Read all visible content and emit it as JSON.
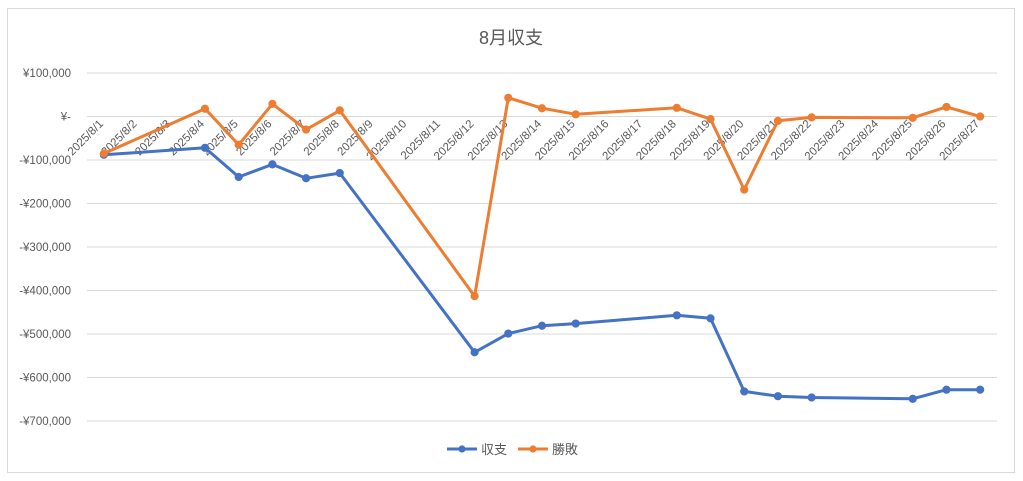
{
  "chart_data": {
    "type": "line",
    "title": "8月収支",
    "categories": [
      "2025/8/1",
      "2025/8/2",
      "2025/8/3",
      "2025/8/4",
      "2025/8/5",
      "2025/8/6",
      "2025/8/7",
      "2025/8/8",
      "2025/8/9",
      "2025/8/10",
      "2025/8/11",
      "2025/8/12",
      "2025/8/13",
      "2025/8/14",
      "2025/8/15",
      "2025/8/16",
      "2025/8/17",
      "2025/8/18",
      "2025/8/19",
      "2025/8/20",
      "2025/8/21",
      "2025/8/22",
      "2025/8/23",
      "2025/8/24",
      "2025/8/25",
      "2025/8/26",
      "2025/8/27"
    ],
    "y_ticks": [
      "¥100,000",
      "¥-",
      "-¥100,000",
      "-¥200,000",
      "-¥300,000",
      "-¥400,000",
      "-¥500,000",
      "-¥600,000",
      "-¥700,000"
    ],
    "ylim": [
      -700000,
      100000
    ],
    "grid": true,
    "legend_position": "bottom",
    "series": [
      {
        "name": "収支",
        "color": "#4472c4",
        "points": [
          [
            1,
            -88000
          ],
          [
            4,
            -72000
          ],
          [
            5,
            -139000
          ],
          [
            6,
            -110000
          ],
          [
            7,
            -142000
          ],
          [
            8,
            -130000
          ],
          [
            12,
            -542000
          ],
          [
            13,
            -499000
          ],
          [
            14,
            -481000
          ],
          [
            15,
            -476000
          ],
          [
            18,
            -457000
          ],
          [
            19,
            -464000
          ],
          [
            20,
            -632000
          ],
          [
            21,
            -643000
          ],
          [
            22,
            -646000
          ],
          [
            25,
            -649000
          ],
          [
            26,
            -628000
          ],
          [
            27,
            -628000
          ]
        ]
      },
      {
        "name": "勝敗",
        "color": "#ed7d31",
        "points": [
          [
            1,
            -85000
          ],
          [
            4,
            18000
          ],
          [
            5,
            -65000
          ],
          [
            6,
            29000
          ],
          [
            7,
            -30000
          ],
          [
            8,
            14000
          ],
          [
            12,
            -413000
          ],
          [
            13,
            43000
          ],
          [
            14,
            19000
          ],
          [
            15,
            5000
          ],
          [
            18,
            20000
          ],
          [
            19,
            -6000
          ],
          [
            20,
            -168000
          ],
          [
            21,
            -10000
          ],
          [
            22,
            -2000
          ],
          [
            25,
            -3000
          ],
          [
            26,
            22000
          ],
          [
            27,
            0
          ]
        ]
      }
    ]
  }
}
